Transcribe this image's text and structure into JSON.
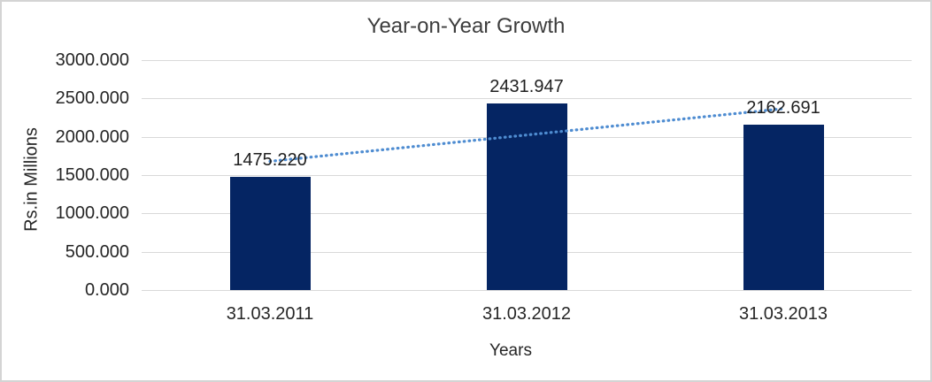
{
  "window": {
    "background_color": "#ffffff",
    "border_color": "#d4d4d4"
  },
  "chart_data": {
    "type": "bar",
    "title": "Year-on-Year Growth",
    "xlabel": "Years",
    "ylabel": "Rs.in Millions",
    "categories": [
      "31.03.2011",
      "31.03.2012",
      "31.03.2013"
    ],
    "values": [
      1475.22,
      2431.947,
      2162.691
    ],
    "data_labels": [
      "1475.220",
      "2431.947",
      "2162.691"
    ],
    "ylim": [
      0,
      3000
    ],
    "ytick_values": [
      0,
      500,
      1000,
      1500,
      2000,
      2500,
      3000
    ],
    "ytick_labels": [
      "0.000",
      "500.000",
      "1000.000",
      "1500.000",
      "2000.000",
      "2500.000",
      "3000.000"
    ],
    "grid": true,
    "legend": "none",
    "bar_color": "#052563",
    "gridline_color": "#d9d9d9",
    "trendline": {
      "type": "linear",
      "style": "dotted",
      "color": "#4e8cd1",
      "start_value": 1679.6,
      "end_value": 2367.0
    }
  }
}
